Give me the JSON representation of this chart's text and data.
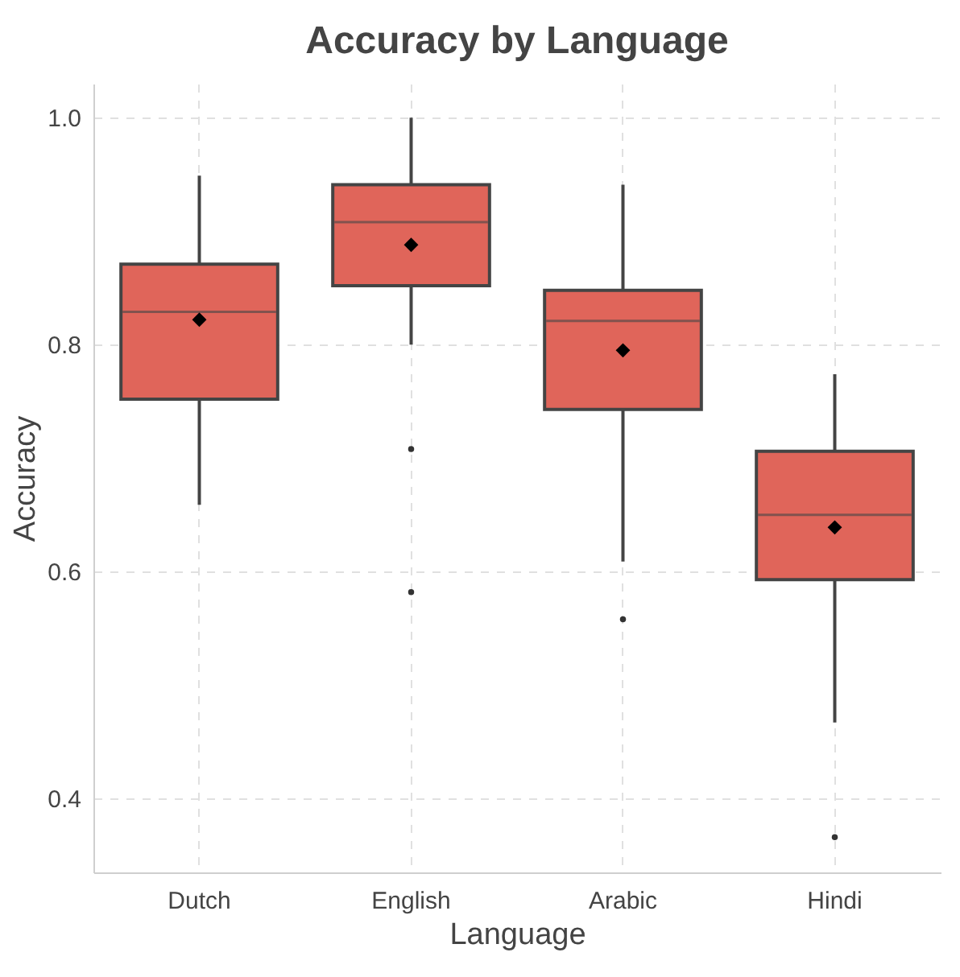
{
  "chart_data": {
    "type": "box",
    "title": "Accuracy by Language",
    "xlabel": "Language",
    "ylabel": "Accuracy",
    "categories": [
      "Dutch",
      "English",
      "Arabic",
      "Hindi"
    ],
    "color": "#e0655a",
    "boxes": [
      {
        "low": 0.659,
        "q1": 0.752,
        "median": 0.829,
        "q3": 0.871,
        "high": 0.949,
        "mean": 0.822
      },
      {
        "low": 0.8,
        "q1": 0.852,
        "median": 0.908,
        "q3": 0.941,
        "high": 1.0,
        "mean": 0.888,
        "outliers": [
          0.708,
          0.582
        ]
      },
      {
        "low": 0.609,
        "q1": 0.743,
        "median": 0.821,
        "q3": 0.848,
        "high": 0.941,
        "mean": 0.795,
        "outliers": [
          0.558
        ]
      },
      {
        "low": 0.467,
        "q1": 0.593,
        "median": 0.65,
        "q3": 0.706,
        "high": 0.774,
        "mean": 0.639,
        "outliers": [
          0.366
        ]
      }
    ],
    "ylim": [
      0.335,
      1.03
    ],
    "yticks": [
      {
        "value": 0.4,
        "label": "0.4"
      },
      {
        "value": 0.6,
        "label": "0.6"
      },
      {
        "value": 0.8,
        "label": "0.8"
      },
      {
        "value": 1,
        "label": "1.0"
      }
    ],
    "grid": true
  }
}
